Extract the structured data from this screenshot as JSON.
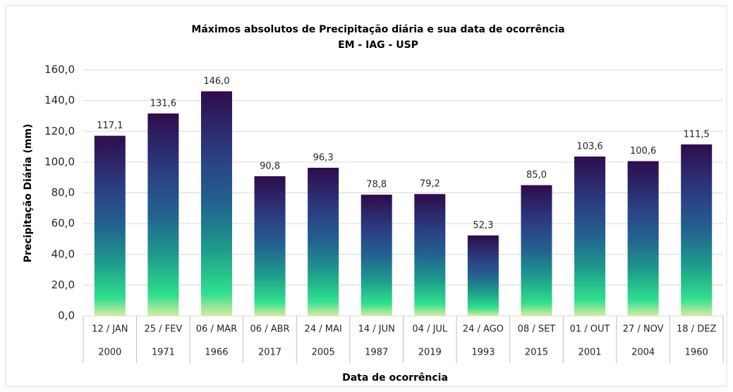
{
  "chart_data": {
    "type": "bar",
    "title": "Máximos absolutos de Precipitação diária e sua data de ocorrência",
    "subtitle": "EM - IAG - USP",
    "y_label": "Precipitação Diária (mm)",
    "x_label": "Data de ocorrência",
    "categories": [
      "12 / JAN",
      "25 / FEV",
      "06 / MAR",
      "06 / ABR",
      "24 / MAI",
      "14 / JUN",
      "04 / JUL",
      "24 / AGO",
      "08 / SET",
      "01 / OUT",
      "27 / NOV",
      "18 / DEZ"
    ],
    "years": [
      "2000",
      "1971",
      "1966",
      "2017",
      "2005",
      "1987",
      "2019",
      "1993",
      "2015",
      "2001",
      "2004",
      "1960"
    ],
    "values": [
      117.1,
      131.6,
      146.0,
      90.8,
      96.3,
      78.8,
      79.2,
      52.3,
      85.0,
      103.6,
      100.6,
      111.5
    ],
    "value_labels": [
      "117,1",
      "131,6",
      "146,0",
      "90,8",
      "96,3",
      "78,8",
      "79,2",
      "52,3",
      "85,0",
      "103,6",
      "100,6",
      "111,5"
    ],
    "ylim": [
      0,
      160
    ],
    "yticks": [
      {
        "value": 0,
        "label": "0,0"
      },
      {
        "value": 20,
        "label": "20,0"
      },
      {
        "value": 40,
        "label": "40,0"
      },
      {
        "value": 60,
        "label": "60,0"
      },
      {
        "value": 80,
        "label": "80,0"
      },
      {
        "value": 100,
        "label": "100,0"
      },
      {
        "value": 120,
        "label": "120,0"
      },
      {
        "value": 140,
        "label": "140,0"
      },
      {
        "value": 160,
        "label": "160,0"
      }
    ],
    "grid": true
  }
}
